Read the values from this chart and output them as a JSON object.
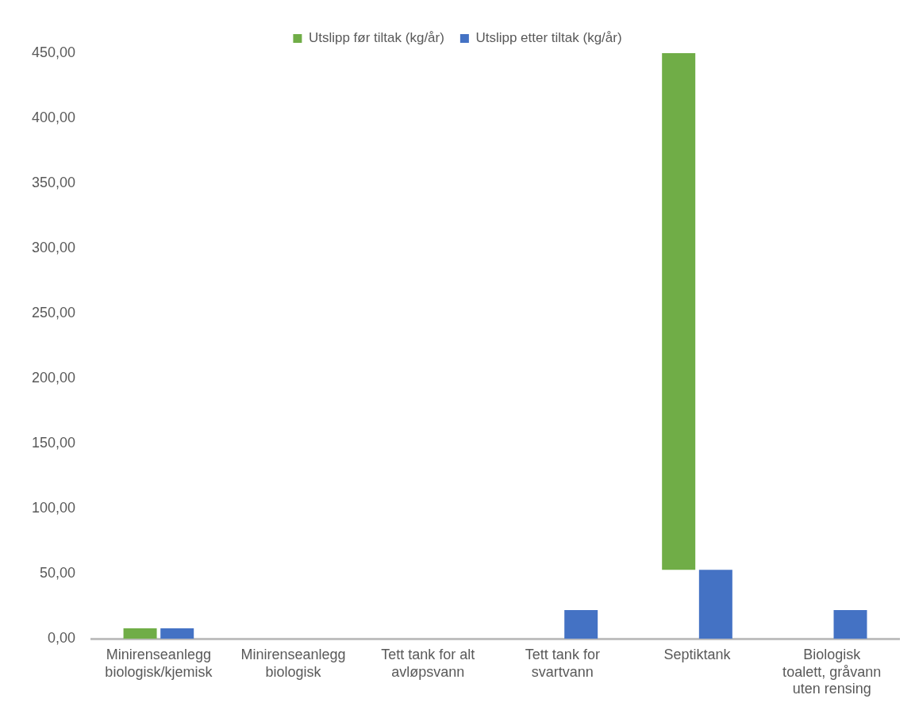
{
  "chart_data": {
    "type": "bar",
    "categories": [
      "Minirenseanlegg biologisk/kjemisk",
      "Minirenseanlegg biologisk",
      "Tett tank for alt avløpsvann",
      "Tett tank for svartvann",
      "Septiktank",
      "Biologisk toalett, gråvann uten rensing"
    ],
    "series": [
      {
        "name": "Utslipp før tiltak (kg/år)",
        "color": "#70ad47",
        "values": [
          8,
          null,
          null,
          null,
          397,
          null
        ],
        "base": [
          0,
          null,
          null,
          null,
          53,
          null
        ]
      },
      {
        "name": "Utslipp etter tiltak (kg/år)",
        "color": "#4472c4",
        "values": [
          8,
          null,
          null,
          22,
          53,
          22
        ]
      }
    ],
    "ylim": [
      0,
      450
    ],
    "yticks": [
      {
        "value": 0,
        "label": "0,00"
      },
      {
        "value": 50,
        "label": "50,00"
      },
      {
        "value": 100,
        "label": "100,00"
      },
      {
        "value": 150,
        "label": "150,00"
      },
      {
        "value": 200,
        "label": "200,00"
      },
      {
        "value": 250,
        "label": "250,00"
      },
      {
        "value": 300,
        "label": "300,00"
      },
      {
        "value": 350,
        "label": "350,00"
      },
      {
        "value": 400,
        "label": "400,00"
      },
      {
        "value": 450,
        "label": "450,00"
      }
    ],
    "grid": false,
    "legend": "top"
  }
}
